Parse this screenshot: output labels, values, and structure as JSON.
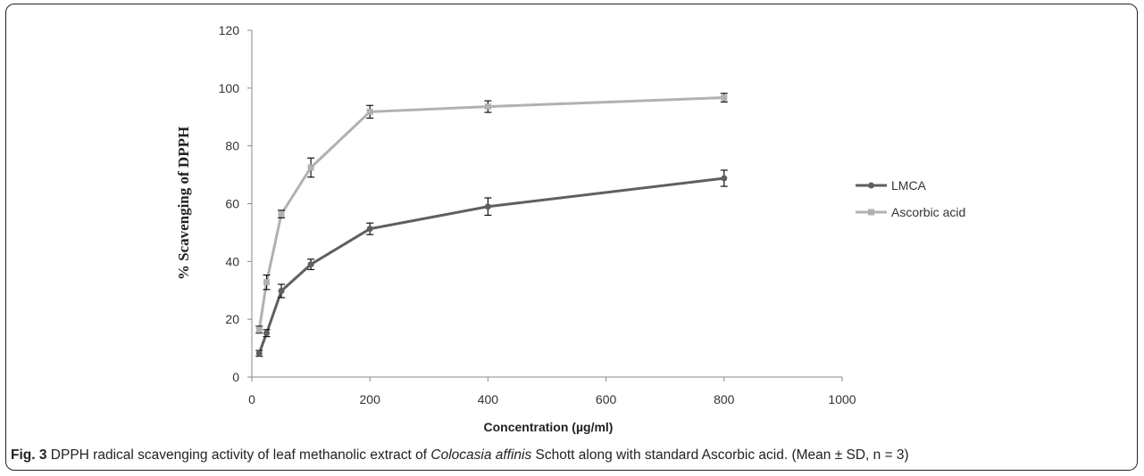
{
  "chart_data": {
    "type": "line",
    "ylabel": "% Scavenging of DPPH",
    "xlabel": "Concentration (µg/ml)",
    "xlim": [
      0,
      1000
    ],
    "ylim": [
      0,
      120
    ],
    "x_ticks": [
      0,
      200,
      400,
      600,
      800,
      1000
    ],
    "y_ticks": [
      0,
      20,
      40,
      60,
      80,
      100,
      120
    ],
    "x_tick_labels": [
      "0",
      "200",
      "400",
      "600",
      "800",
      "1000"
    ],
    "y_tick_labels": [
      "0",
      "20",
      "40",
      "60",
      "80",
      "100",
      "120"
    ],
    "grid": false,
    "legend_position": "right",
    "series": [
      {
        "name": "LMCA",
        "color": "#5f5f5f",
        "marker": "circle",
        "x": [
          12.5,
          25,
          50,
          100,
          200,
          400,
          800
        ],
        "y": [
          8.2,
          15.2,
          29.8,
          39.0,
          51.3,
          59.0,
          68.8
        ],
        "err": [
          1.0,
          1.2,
          2.3,
          1.8,
          2.0,
          3.0,
          2.8
        ]
      },
      {
        "name": "Ascorbic acid",
        "color": "#b1b1b1",
        "marker": "square",
        "x": [
          12.5,
          25,
          50,
          100,
          200,
          400,
          800
        ],
        "y": [
          16.4,
          32.8,
          56.4,
          72.5,
          91.8,
          93.6,
          96.7
        ],
        "err": [
          1.2,
          2.5,
          1.3,
          3.3,
          2.2,
          2.0,
          1.5
        ]
      }
    ]
  },
  "caption": {
    "label": "Fig. 3",
    "text_before": " DPPH radical scavenging activity of leaf methanolic extract of ",
    "species": "Colocasia affinis",
    "text_after": " Schott along with standard Ascorbic acid. (Mean ± SD, n = 3)"
  }
}
